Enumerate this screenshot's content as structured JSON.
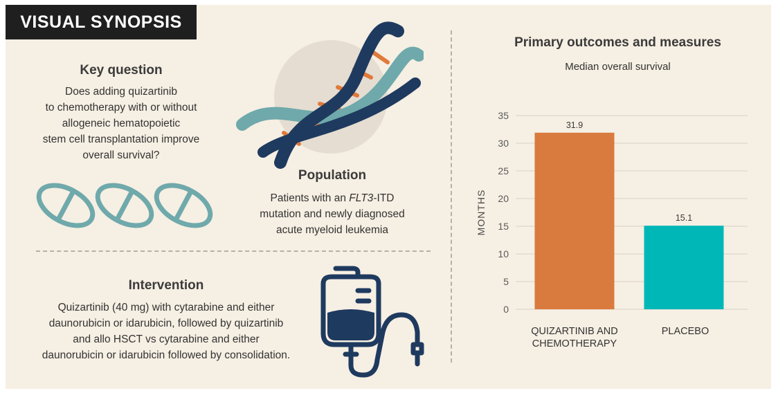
{
  "banner": "VISUAL SYNOPSIS",
  "key_question": {
    "heading": "Key question",
    "lines": [
      "Does adding quizartinib",
      "to chemotherapy with or without",
      "allogeneic hematopoietic",
      "stem cell transplantation improve",
      "overall survival?"
    ]
  },
  "population": {
    "heading": "Population",
    "line1_pre": "Patients with an ",
    "line1_italic": "FLT3",
    "line1_post": "-ITD",
    "line2": "mutation and newly diagnosed",
    "line3": "acute myeloid leukemia"
  },
  "intervention": {
    "heading": "Intervention",
    "lines": [
      "Quizartinib (40 mg) with cytarabine and either",
      "daunorubicin or idarubicin, followed by quizartinib",
      "and allo HSCT vs cytarabine and either",
      "daunorubicin or idarubicin followed by consolidation."
    ]
  },
  "icons": {
    "pills": "pill-icon",
    "dna": "dna-helix-icon",
    "iv_bag": "iv-bag-icon"
  },
  "colors": {
    "background": "#f6efe3",
    "banner": "#1f1f1f",
    "bar_quizartinib": "#d97a3e",
    "bar_placebo": "#00b7b7",
    "teal_icon": "#6fa9ab",
    "navy_icon": "#1f3a5f"
  },
  "outcomes": {
    "heading": "Primary outcomes and measures",
    "subtitle": "Median overall survival"
  },
  "chart_data": {
    "type": "bar",
    "title": "Median overall survival",
    "ylabel": "MONTHS",
    "xlabel": "",
    "ylim": [
      0,
      35
    ],
    "yticks": [
      "0",
      "5",
      "10",
      "15",
      "20",
      "25",
      "30",
      "35"
    ],
    "grid": true,
    "categories": [
      [
        "QUIZARTINIB AND",
        "CHEMOTHERAPY"
      ],
      [
        "PLACEBO"
      ]
    ],
    "values": [
      31.9,
      15.1
    ],
    "value_labels": [
      "31.9",
      "15.1"
    ],
    "colors": [
      "#d97a3e",
      "#00b7b7"
    ]
  }
}
